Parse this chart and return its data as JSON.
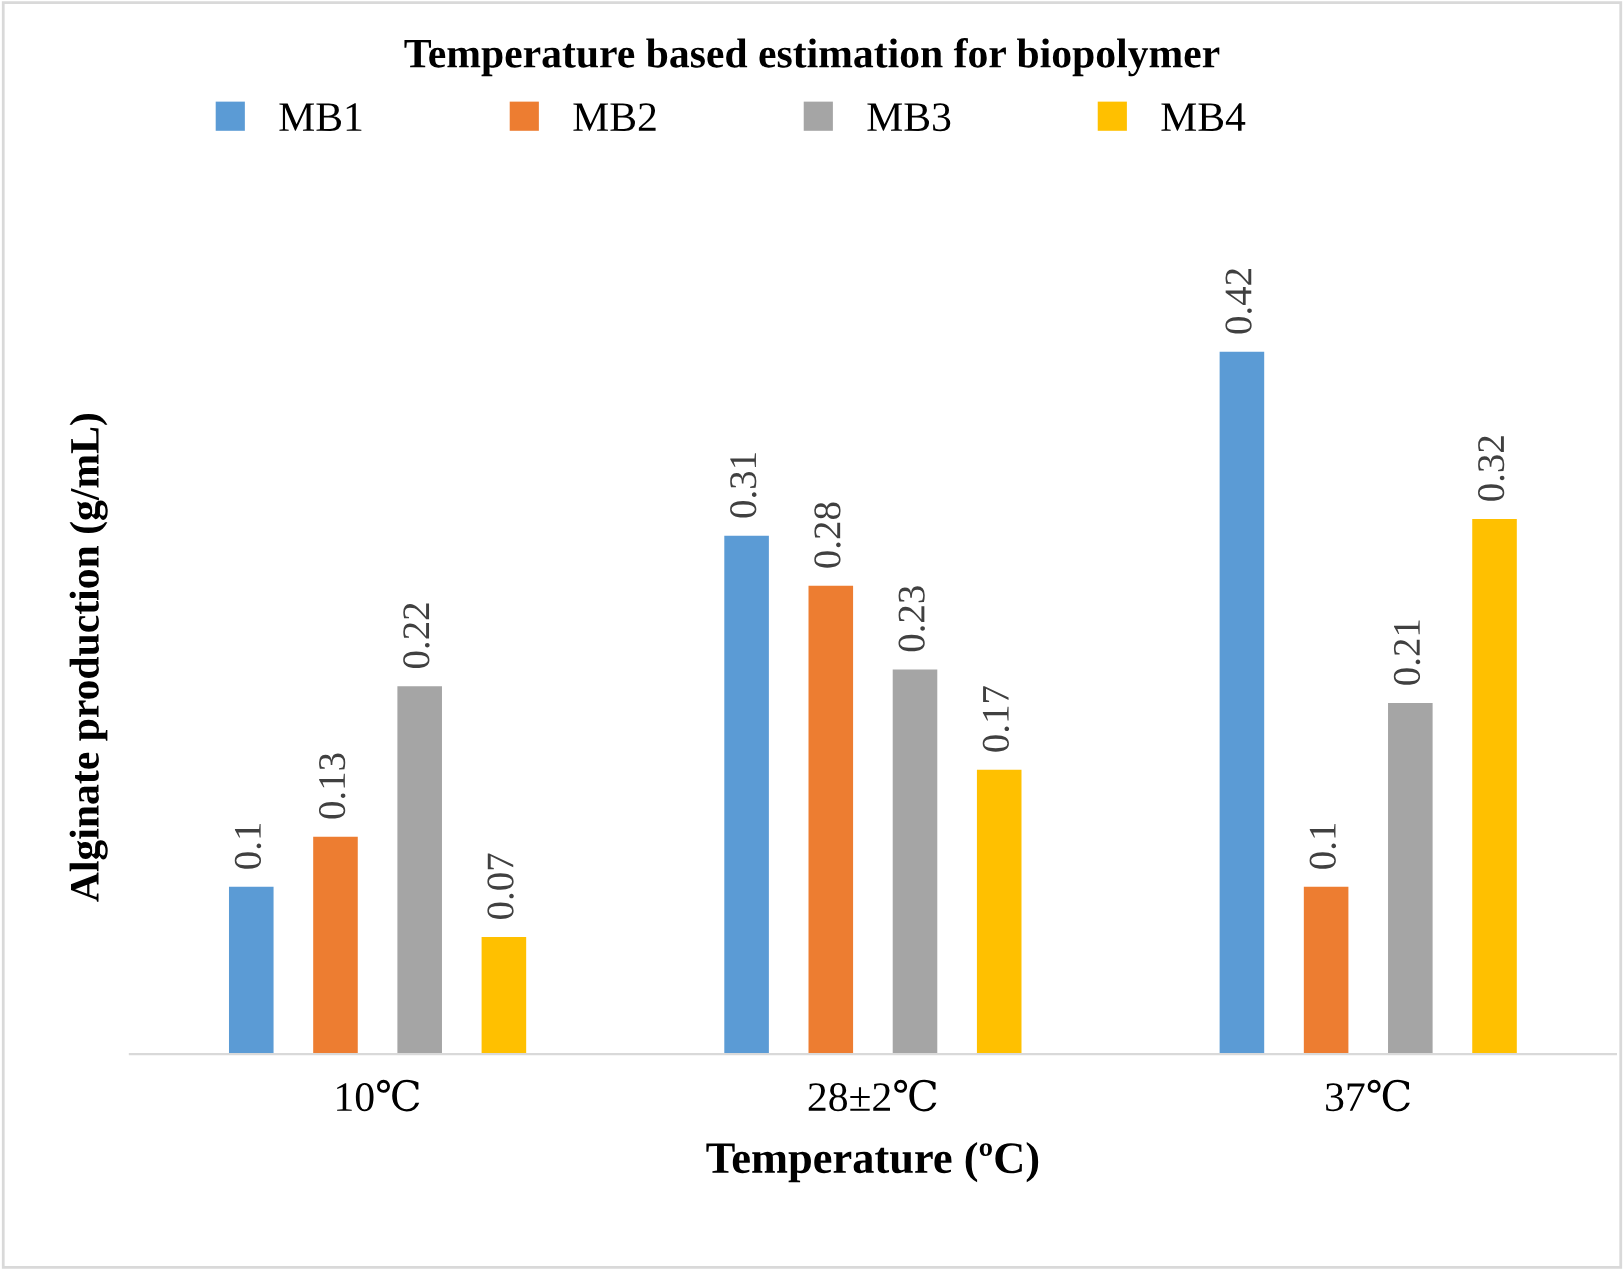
{
  "chart_data": {
    "type": "bar",
    "title": "Temperature based estimation for biopolymer",
    "xlabel": "Temperature (ºC)",
    "ylabel": "Alginate production (g/mL)",
    "categories": [
      "10℃",
      "28±2℃",
      "37℃"
    ],
    "series": [
      {
        "name": "MB1",
        "color": "#5b9bd5",
        "values": [
          0.1,
          0.31,
          0.42
        ]
      },
      {
        "name": "MB2",
        "color": "#ed7d31",
        "values": [
          0.13,
          0.28,
          0.1
        ]
      },
      {
        "name": "MB3",
        "color": "#a5a5a5",
        "values": [
          0.22,
          0.23,
          0.21
        ]
      },
      {
        "name": "MB4",
        "color": "#ffc000",
        "values": [
          0.07,
          0.17,
          0.32
        ]
      }
    ],
    "data_labels": true,
    "legend": "top",
    "grid": false
  }
}
